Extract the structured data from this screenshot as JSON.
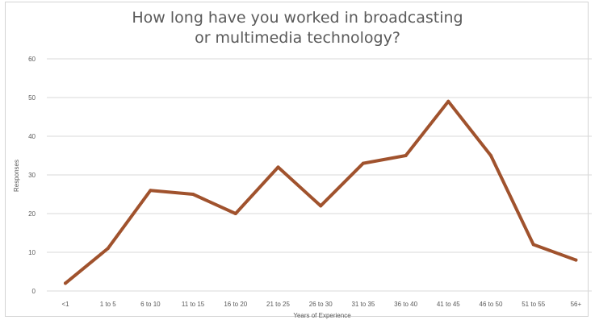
{
  "chart_data": {
    "type": "line",
    "title_lines": [
      "How long have you worked in broadcasting",
      "or multimedia technology?"
    ],
    "xlabel": "Years of Experience",
    "ylabel": "Responses",
    "categories": [
      "<1",
      "1 to 5",
      "6 to 10",
      "11 to 15",
      "16 to 20",
      "21 to 25",
      "26 to 30",
      "31 to 35",
      "36 to 40",
      "41 to 45",
      "46 to 50",
      "51 to 55",
      "56+"
    ],
    "series": [
      {
        "values": [
          2,
          11,
          26,
          25,
          20,
          32,
          22,
          33,
          35,
          49,
          35,
          12,
          8
        ]
      }
    ],
    "ylim": [
      0,
      60
    ],
    "yticks": [
      0,
      10,
      20,
      30,
      40,
      50,
      60
    ],
    "grid": true,
    "legend": "none",
    "colors": {
      "line": "#a0522d",
      "grid": "#d9d9d9",
      "tick_text": "#595959",
      "title": "#5a5a5a"
    }
  }
}
